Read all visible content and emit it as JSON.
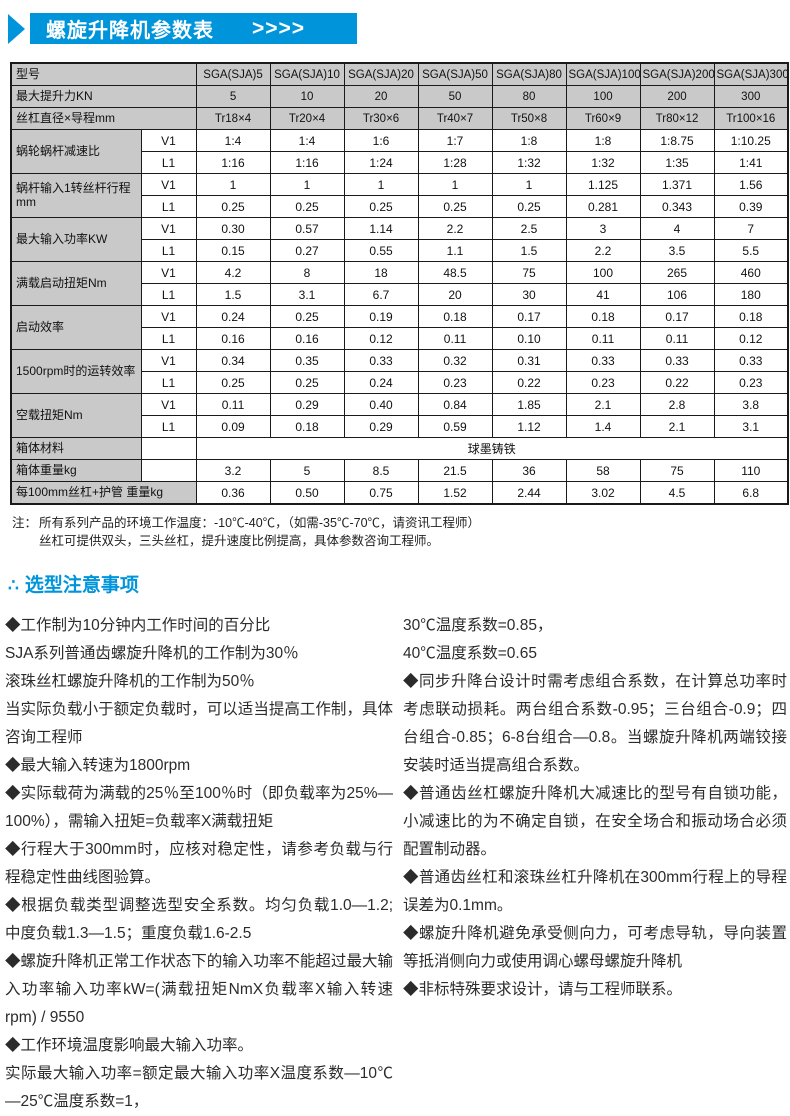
{
  "colors": {
    "accent_blue": "#0095db",
    "table_gray": "#c9c9c9"
  },
  "header": {
    "title": "螺旋升降机参数表",
    "arrows": ">>>>"
  },
  "table": {
    "sub_labels": [
      "V1",
      "L1"
    ],
    "rows": [
      {
        "type": "head",
        "label": "型号",
        "values": [
          "SGA(SJA)5",
          "SGA(SJA)10",
          "SGA(SJA)20",
          "SGA(SJA)50",
          "SGA(SJA)80",
          "SGA(SJA)100",
          "SGA(SJA)200",
          "SGA(SJA)300"
        ]
      },
      {
        "type": "head",
        "label": "最大提升力KN",
        "values": [
          "5",
          "10",
          "20",
          "50",
          "80",
          "100",
          "200",
          "300"
        ]
      },
      {
        "type": "head",
        "label": "丝杠直径×导程mm",
        "values": [
          "Tr18×4",
          "Tr20×4",
          "Tr30×6",
          "Tr40×7",
          "Tr50×8",
          "Tr60×9",
          "Tr80×12",
          "Tr100×16"
        ]
      },
      {
        "type": "dual",
        "label": "蜗轮蜗杆减速比",
        "v1": [
          "1:4",
          "1:4",
          "1:6",
          "1:7",
          "1:8",
          "1:8",
          "1:8.75",
          "1:10.25"
        ],
        "l1": [
          "1:16",
          "1:16",
          "1:24",
          "1:28",
          "1:32",
          "1:32",
          "1:35",
          "1:41"
        ]
      },
      {
        "type": "dual",
        "label": "蜗杆输入1转丝杆行程mm",
        "v1": [
          "1",
          "1",
          "1",
          "1",
          "1",
          "1.125",
          "1.371",
          "1.56"
        ],
        "l1": [
          "0.25",
          "0.25",
          "0.25",
          "0.25",
          "0.25",
          "0.281",
          "0.343",
          "0.39"
        ]
      },
      {
        "type": "dual",
        "label": "最大输入功率KW",
        "v1": [
          "0.30",
          "0.57",
          "1.14",
          "2.2",
          "2.5",
          "3",
          "4",
          "7"
        ],
        "l1": [
          "0.15",
          "0.27",
          "0.55",
          "1.1",
          "1.5",
          "2.2",
          "3.5",
          "5.5"
        ]
      },
      {
        "type": "dual",
        "label": "满载启动扭矩Nm",
        "v1": [
          "4.2",
          "8",
          "18",
          "48.5",
          "75",
          "100",
          "265",
          "460"
        ],
        "l1": [
          "1.5",
          "3.1",
          "6.7",
          "20",
          "30",
          "41",
          "106",
          "180"
        ]
      },
      {
        "type": "dual",
        "label": "启动效率",
        "v1": [
          "0.24",
          "0.25",
          "0.19",
          "0.18",
          "0.17",
          "0.18",
          "0.17",
          "0.18"
        ],
        "l1": [
          "0.16",
          "0.16",
          "0.12",
          "0.11",
          "0.10",
          "0.11",
          "0.11",
          "0.12"
        ]
      },
      {
        "type": "dual",
        "label": "1500rpm时的运转效率",
        "v1": [
          "0.34",
          "0.35",
          "0.33",
          "0.32",
          "0.31",
          "0.33",
          "0.33",
          "0.33"
        ],
        "l1": [
          "0.25",
          "0.25",
          "0.24",
          "0.23",
          "0.22",
          "0.23",
          "0.22",
          "0.23"
        ]
      },
      {
        "type": "dual",
        "label": "空载扭矩Nm",
        "v1": [
          "0.11",
          "0.29",
          "0.40",
          "0.84",
          "1.85",
          "2.1",
          "2.8",
          "3.8"
        ],
        "l1": [
          "0.09",
          "0.18",
          "0.29",
          "0.59",
          "1.12",
          "1.4",
          "2.1",
          "3.1"
        ]
      },
      {
        "type": "merged",
        "label": "箱体材料",
        "value": "球墨铸铁"
      },
      {
        "type": "sub",
        "label": "箱体重量kg",
        "values": [
          "3.2",
          "5",
          "8.5",
          "21.5",
          "36",
          "58",
          "75",
          "110"
        ]
      },
      {
        "type": "full",
        "label": "每100mm丝杠+护管 重量kg",
        "values": [
          "0.36",
          "0.50",
          "0.75",
          "1.52",
          "2.44",
          "3.02",
          "4.5",
          "6.8"
        ]
      }
    ]
  },
  "notes": {
    "prefix": "注：",
    "line1": "所有系列产品的环境工作温度：-10℃-40℃，（如需-35℃-70℃，请资讯工程师）",
    "line2": "丝杠可提供双头，三头丝杠，提升速度比例提高，具体参数咨询工程师。"
  },
  "section": {
    "marker": "∴",
    "title": "选型注意事项"
  },
  "notice": {
    "left": [
      "◆工作制为10分钟内工作时间的百分比",
      "SJA系列普通齿螺旋升降机的工作制为30％",
      "滚珠丝杠螺旋升降机的工作制为50％",
      "当实际负载小于额定负载时，可以适当提高工作制，具体咨询工程师",
      "◆最大输入转速为1800rpm",
      "◆实际载荷为满载的25％至100％时（即负载率为25%—100%），需输入扭矩=负载率X满载扭矩",
      "◆行程大于300mm时，应核对稳定性，请参考负载与行程稳定性曲线图验算。",
      "◆根据负载类型调整选型安全系数。均匀负载1.0—1.2;中度负载1.3—1.5；重度负载1.6-2.5",
      "◆螺旋升降机正常工作状态下的输入功率不能超过最大输入功率输入功率kW=(满载扭矩NmX负载率X输入转速rpm) / 9550",
      "◆工作环境温度影响最大输入功率。",
      "实际最大输入功率=额定最大输入功率X温度系数—10℃—25℃温度系数=1，"
    ],
    "right": [
      "30℃温度系数=0.85，",
      "40℃温度系数=0.65",
      "◆同步升降台设计时需考虑组合系数，在计算总功率时考虑联动损耗。两台组合系数-0.95；三台组合-0.9；四台组合-0.85；6-8台组合—0.8。当螺旋升降机两端铰接安装时适当提高组合系数。",
      "◆普通齿丝杠螺旋升降机大减速比的型号有自锁功能，小减速比的为不确定自锁，在安全场合和振动场合必须配置制动器。",
      "◆普通齿丝杠和滚珠丝杠升降机在300mm行程上的导程误差为0.1mm。",
      "◆螺旋升降机避免承受侧向力，可考虑导轨，导向装置等抵消侧向力或使用调心螺母螺旋升降机",
      "◆非标特殊要求设计，请与工程师联系。"
    ]
  }
}
